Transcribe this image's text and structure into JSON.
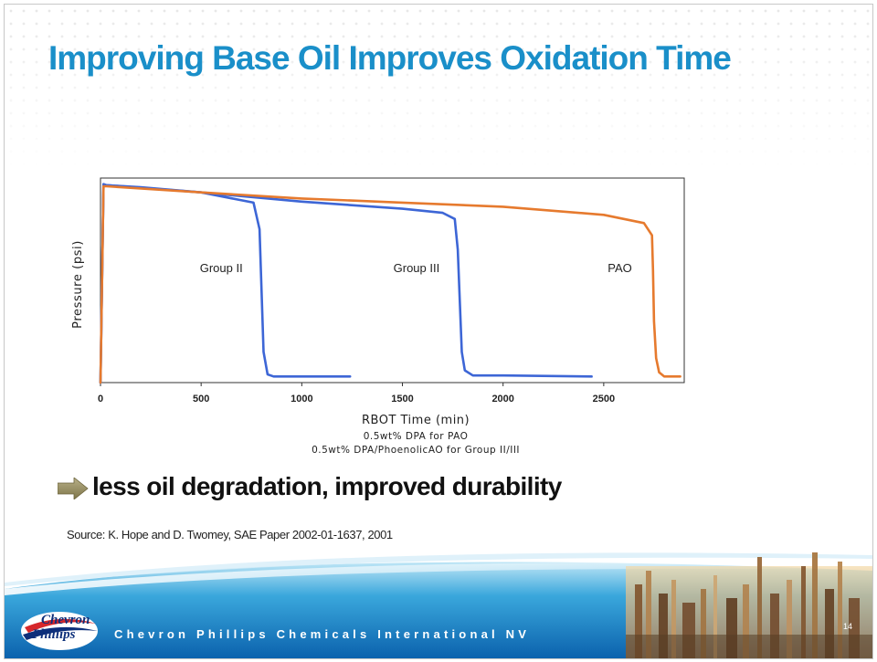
{
  "slide": {
    "title": "Improving Base Oil Improves Oxidation Time",
    "bullet": "less oil degradation,  improved durability",
    "source": "Source:  K. Hope and D. Twomey, SAE Paper 2002-01-1637,  2001",
    "company": "Chevron Phillips Chemicals International NV",
    "logo": {
      "line1": "Chevron",
      "line2": "Phillips"
    },
    "page_number": "14",
    "title_color": "#1a8fc9",
    "arrow_color": "#9a9060",
    "arrow_icon": "right-arrow-icon"
  },
  "chart_data": {
    "type": "line",
    "title": "",
    "xlabel": "RBOT Time (min)",
    "ylabel": "Pressure (psi)",
    "notes": [
      "0.5wt% DPA for PAO",
      "0.5wt% DPA/PhoenolicAO for Group II/III"
    ],
    "xlim": [
      0,
      2900
    ],
    "ylim": [
      0,
      100
    ],
    "xticks": [
      0,
      500,
      1000,
      1500,
      2000,
      2500
    ],
    "y_tick_labels_shown": false,
    "grid": false,
    "legend": "inline labels",
    "series": [
      {
        "name": "Group II",
        "color": "#3d66d6",
        "x": [
          0,
          15,
          30,
          200,
          500,
          760,
          790,
          800,
          810,
          830,
          860,
          1000,
          1240
        ],
        "y": [
          0,
          97,
          96.5,
          95.5,
          93,
          88,
          75,
          45,
          15,
          4,
          3,
          3,
          3
        ]
      },
      {
        "name": "Group III",
        "color": "#3d66d6",
        "x": [
          0,
          15,
          30,
          500,
          1000,
          1500,
          1700,
          1760,
          1775,
          1785,
          1795,
          1810,
          1850,
          2000,
          2440
        ],
        "y": [
          0,
          97,
          96.5,
          93,
          88.5,
          85,
          83,
          80,
          65,
          40,
          15,
          6,
          3.5,
          3.5,
          3
        ]
      },
      {
        "name": "PAO",
        "color": "#e67a2e",
        "x": [
          0,
          15,
          30,
          500,
          1000,
          1500,
          2000,
          2500,
          2700,
          2740,
          2745,
          2750,
          2760,
          2775,
          2800,
          2880
        ],
        "y": [
          0,
          96,
          96,
          93,
          90,
          88,
          86,
          82,
          78,
          72,
          55,
          30,
          12,
          5,
          3,
          3
        ]
      }
    ],
    "series_label_positions": [
      {
        "name": "Group II",
        "x": 600,
        "y": 54
      },
      {
        "name": "Group III",
        "x": 1570,
        "y": 54
      },
      {
        "name": "PAO",
        "x": 2580,
        "y": 54
      }
    ]
  }
}
